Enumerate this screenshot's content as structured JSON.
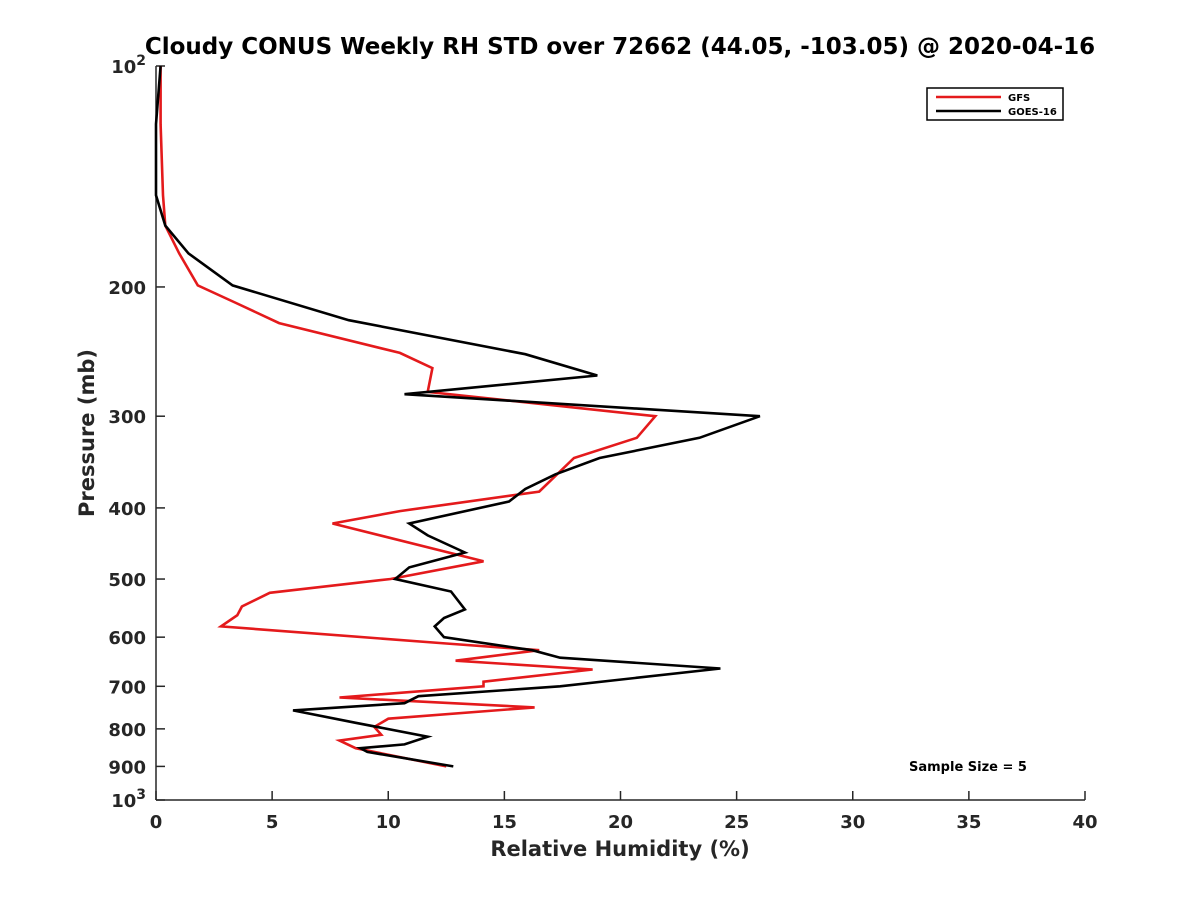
{
  "chart_data": {
    "type": "line",
    "title": "Cloudy CONUS Weekly RH STD over 72662 (44.05, -103.05) @ 2020-04-16",
    "xlabel": "Relative Humidity (%)",
    "ylabel": "Pressure (mb)",
    "xlim": [
      0,
      40
    ],
    "ylim": [
      100,
      1000
    ],
    "yscale": "log",
    "yreversed": true,
    "x_ticks": [
      0,
      5,
      10,
      15,
      20,
      25,
      30,
      35,
      40
    ],
    "y_ticks": [
      100,
      200,
      300,
      400,
      500,
      600,
      700,
      800,
      900,
      1000
    ],
    "y_tick_labels": [
      "10²",
      "200",
      "300",
      "400",
      "500",
      "600",
      "700",
      "800",
      "900",
      "10³"
    ],
    "grid": false,
    "legend_position": "top-right",
    "annotation": "Sample Size = 5",
    "series": [
      {
        "name": "GFS",
        "color": "#e41a1c",
        "points": [
          [
            0.2,
            100
          ],
          [
            0.2,
            120
          ],
          [
            0.3,
            150
          ],
          [
            0.4,
            165
          ],
          [
            1.0,
            180
          ],
          [
            1.8,
            199
          ],
          [
            3.4,
            210
          ],
          [
            5.3,
            224
          ],
          [
            10.5,
            246
          ],
          [
            11.9,
            258
          ],
          [
            11.7,
            278
          ],
          [
            21.5,
            300
          ],
          [
            20.7,
            321
          ],
          [
            18.0,
            342
          ],
          [
            16.5,
            380
          ],
          [
            10.5,
            404
          ],
          [
            7.6,
            420
          ],
          [
            14.1,
            473
          ],
          [
            10.1,
            500
          ],
          [
            4.9,
            522
          ],
          [
            3.7,
            545
          ],
          [
            3.5,
            560
          ],
          [
            2.8,
            580
          ],
          [
            12.5,
            612
          ],
          [
            16.5,
            625
          ],
          [
            12.9,
            646
          ],
          [
            18.8,
            664
          ],
          [
            14.1,
            690
          ],
          [
            14.1,
            700
          ],
          [
            7.9,
            725
          ],
          [
            16.3,
            748
          ],
          [
            10.0,
            775
          ],
          [
            9.4,
            795
          ],
          [
            9.7,
            815
          ],
          [
            7.9,
            830
          ],
          [
            8.6,
            850
          ],
          [
            12.5,
            900
          ]
        ]
      },
      {
        "name": "GOES-16",
        "color": "#000000",
        "points": [
          [
            0.2,
            100
          ],
          [
            0.0,
            120
          ],
          [
            0.0,
            150
          ],
          [
            0.4,
            165
          ],
          [
            1.4,
            180
          ],
          [
            3.3,
            199
          ],
          [
            8.3,
            222
          ],
          [
            15.9,
            247
          ],
          [
            19.0,
            264
          ],
          [
            10.7,
            280
          ],
          [
            26.0,
            300
          ],
          [
            23.4,
            321
          ],
          [
            19.1,
            342
          ],
          [
            17.2,
            360
          ],
          [
            15.9,
            377
          ],
          [
            15.2,
            392
          ],
          [
            10.9,
            420
          ],
          [
            11.7,
            436
          ],
          [
            13.3,
            460
          ],
          [
            10.9,
            482
          ],
          [
            10.3,
            500
          ],
          [
            12.7,
            520
          ],
          [
            13.3,
            550
          ],
          [
            12.4,
            565
          ],
          [
            12.0,
            580
          ],
          [
            12.4,
            600
          ],
          [
            16.2,
            625
          ],
          [
            17.4,
            640
          ],
          [
            24.3,
            662
          ],
          [
            17.4,
            700
          ],
          [
            11.3,
            722
          ],
          [
            10.7,
            738
          ],
          [
            5.9,
            755
          ],
          [
            8.6,
            785
          ],
          [
            11.7,
            820
          ],
          [
            10.7,
            840
          ],
          [
            8.8,
            850
          ],
          [
            9.1,
            860
          ],
          [
            12.8,
            900
          ]
        ]
      }
    ]
  }
}
